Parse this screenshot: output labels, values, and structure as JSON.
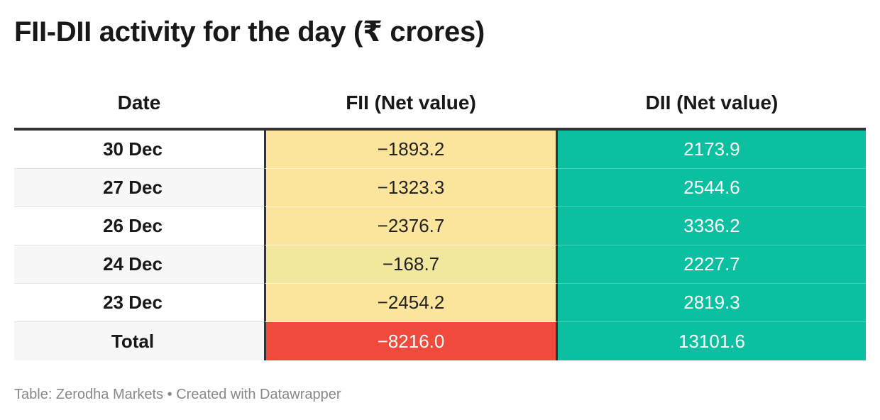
{
  "title": "FII-DII activity for the day (₹ crores)",
  "footer": "Table: Zerodha Markets • Created with Datawrapper",
  "chart_data": {
    "type": "table",
    "title": "FII-DII activity for the day (₹ crores)",
    "columns": [
      "Date",
      "FII (Net value)",
      "DII (Net value)"
    ],
    "rows": [
      {
        "date": "30 Dec",
        "fii": "−1893.2",
        "dii": "2173.9",
        "fii_color": "#fbe59c",
        "dii_color": "#0bbfa1",
        "date_bg": "#ffffff"
      },
      {
        "date": "27 Dec",
        "fii": "−1323.3",
        "dii": "2544.6",
        "fii_color": "#fbe59c",
        "dii_color": "#0bbfa1",
        "date_bg": "#f7f7f7"
      },
      {
        "date": "26 Dec",
        "fii": "−2376.7",
        "dii": "3336.2",
        "fii_color": "#fbe59c",
        "dii_color": "#0bbfa1",
        "date_bg": "#ffffff"
      },
      {
        "date": "24 Dec",
        "fii": "−168.7",
        "dii": "2227.7",
        "fii_color": "#f1e89e",
        "dii_color": "#0bbfa1",
        "date_bg": "#f7f7f7"
      },
      {
        "date": "23 Dec",
        "fii": "−2454.2",
        "dii": "2819.3",
        "fii_color": "#fbe59c",
        "dii_color": "#0bbfa1",
        "date_bg": "#ffffff"
      },
      {
        "date": "Total",
        "fii": "−8216.0",
        "dii": "13101.6",
        "fii_color": "#ef4a3b",
        "dii_color": "#0bbfa1",
        "date_bg": "#f7f7f7"
      }
    ]
  }
}
